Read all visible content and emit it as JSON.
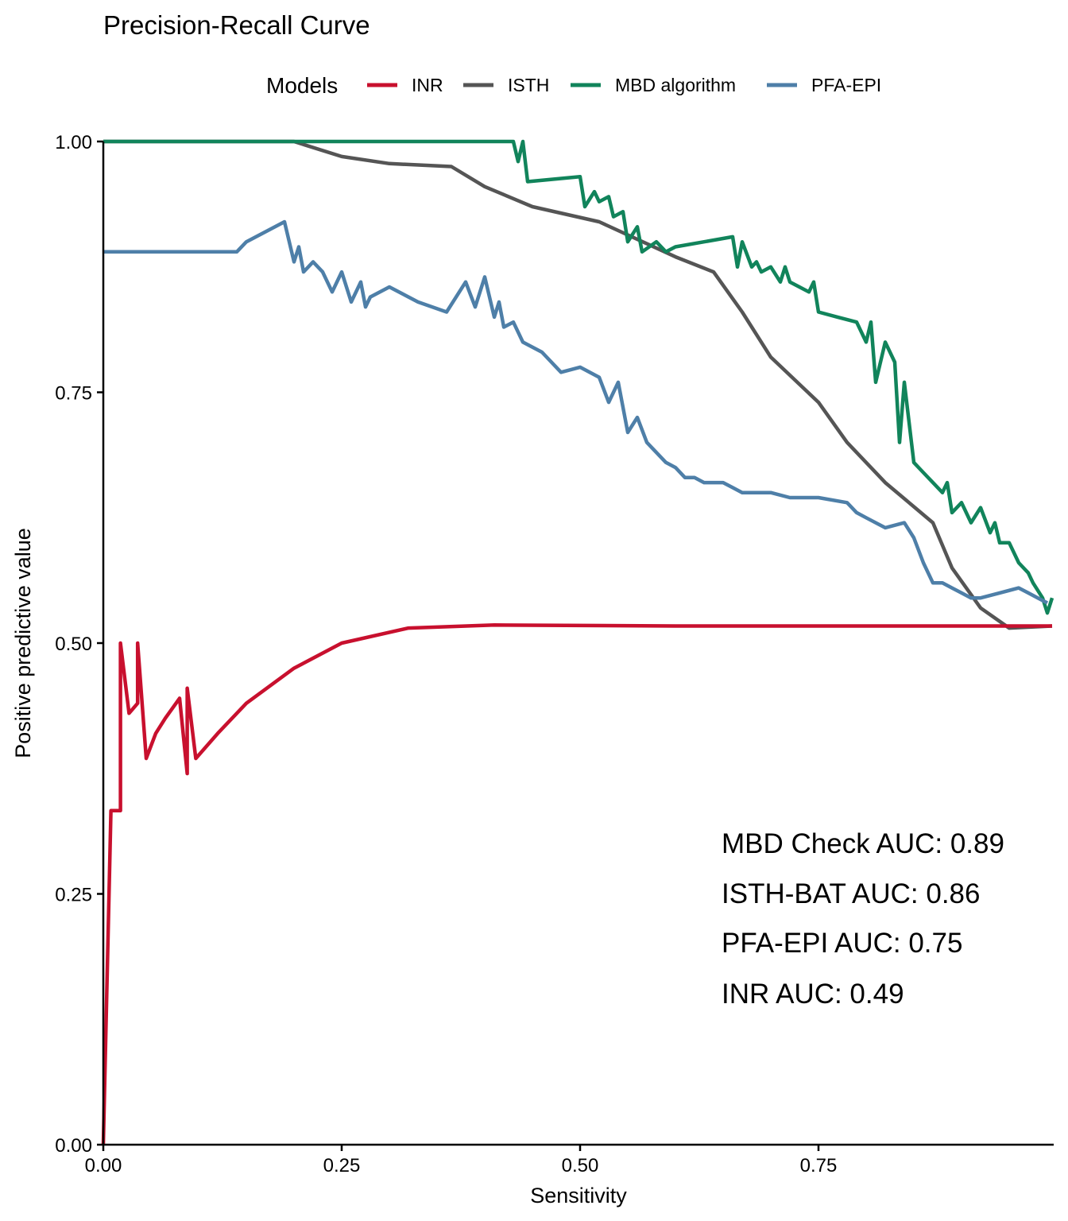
{
  "chart_data": {
    "type": "line",
    "title": "Precision-Recall Curve",
    "xlabel": "Sensitivity",
    "ylabel": "Positive predictive value",
    "xlim": [
      0,
      1
    ],
    "ylim": [
      0,
      1
    ],
    "xticks": [
      "0.00",
      "0.25",
      "0.50",
      "0.75"
    ],
    "xtick_values": [
      0,
      0.25,
      0.5,
      0.75
    ],
    "yticks": [
      "0.00",
      "0.25",
      "0.50",
      "0.75",
      "1.00"
    ],
    "ytick_values": [
      0,
      0.25,
      0.5,
      0.75,
      1.0
    ],
    "grid": false,
    "legend": {
      "title": "Models",
      "placement": "top",
      "entries": [
        "INR",
        "ISTH",
        "MBD algorithm",
        "PFA-EPI"
      ]
    },
    "annotations": [
      "MBD Check AUC: 0.89",
      "ISTH-BAT AUC: 0.86",
      "PFA-EPI AUC: 0.75",
      "INR AUC: 0.49"
    ],
    "series": [
      {
        "name": "INR",
        "color": "#C8102E",
        "x": [
          0.0,
          0.008,
          0.018,
          0.018,
          0.027,
          0.036,
          0.036,
          0.045,
          0.055,
          0.065,
          0.08,
          0.088,
          0.088,
          0.097,
          0.12,
          0.15,
          0.2,
          0.25,
          0.32,
          0.41,
          0.6,
          0.8,
          0.9,
          0.995
        ],
        "y": [
          0.0,
          0.333,
          0.333,
          0.5,
          0.43,
          0.44,
          0.5,
          0.385,
          0.41,
          0.425,
          0.445,
          0.37,
          0.455,
          0.385,
          0.41,
          0.44,
          0.475,
          0.5,
          0.515,
          0.518,
          0.517,
          0.517,
          0.517,
          0.517
        ]
      },
      {
        "name": "ISTH",
        "color": "#555555",
        "x": [
          0.0,
          0.2,
          0.25,
          0.3,
          0.365,
          0.4,
          0.45,
          0.52,
          0.6,
          0.64,
          0.67,
          0.7,
          0.75,
          0.78,
          0.82,
          0.87,
          0.89,
          0.92,
          0.95,
          0.995
        ],
        "y": [
          1.0,
          1.0,
          0.985,
          0.978,
          0.975,
          0.955,
          0.935,
          0.92,
          0.885,
          0.87,
          0.83,
          0.785,
          0.74,
          0.7,
          0.66,
          0.62,
          0.575,
          0.535,
          0.515,
          0.517
        ]
      },
      {
        "name": "MBD algorithm",
        "color": "#11845B",
        "x": [
          0.0,
          0.42,
          0.43,
          0.435,
          0.44,
          0.445,
          0.5,
          0.505,
          0.515,
          0.52,
          0.53,
          0.535,
          0.545,
          0.55,
          0.56,
          0.565,
          0.58,
          0.59,
          0.6,
          0.66,
          0.665,
          0.67,
          0.68,
          0.685,
          0.69,
          0.7,
          0.71,
          0.715,
          0.72,
          0.73,
          0.74,
          0.745,
          0.75,
          0.77,
          0.79,
          0.8,
          0.805,
          0.81,
          0.82,
          0.83,
          0.835,
          0.84,
          0.85,
          0.86,
          0.87,
          0.88,
          0.885,
          0.89,
          0.9,
          0.91,
          0.92,
          0.93,
          0.935,
          0.94,
          0.95,
          0.96,
          0.97,
          0.975,
          0.985,
          0.99,
          0.995
        ],
        "y": [
          1.0,
          1.0,
          1.0,
          0.98,
          1.0,
          0.96,
          0.965,
          0.935,
          0.95,
          0.94,
          0.945,
          0.925,
          0.93,
          0.9,
          0.915,
          0.89,
          0.9,
          0.89,
          0.895,
          0.905,
          0.875,
          0.9,
          0.875,
          0.88,
          0.87,
          0.875,
          0.86,
          0.875,
          0.86,
          0.855,
          0.85,
          0.86,
          0.83,
          0.825,
          0.82,
          0.8,
          0.82,
          0.76,
          0.8,
          0.78,
          0.7,
          0.76,
          0.68,
          0.67,
          0.66,
          0.65,
          0.66,
          0.63,
          0.64,
          0.62,
          0.635,
          0.61,
          0.62,
          0.6,
          0.6,
          0.58,
          0.57,
          0.56,
          0.545,
          0.53,
          0.545
        ]
      },
      {
        "name": "PFA-EPI",
        "color": "#4E7FA8",
        "x": [
          0.0,
          0.14,
          0.15,
          0.17,
          0.19,
          0.2,
          0.205,
          0.21,
          0.22,
          0.23,
          0.24,
          0.25,
          0.26,
          0.27,
          0.275,
          0.28,
          0.3,
          0.33,
          0.36,
          0.38,
          0.39,
          0.4,
          0.41,
          0.415,
          0.42,
          0.43,
          0.44,
          0.46,
          0.48,
          0.5,
          0.52,
          0.53,
          0.54,
          0.55,
          0.56,
          0.57,
          0.58,
          0.59,
          0.6,
          0.61,
          0.62,
          0.63,
          0.65,
          0.66,
          0.67,
          0.68,
          0.7,
          0.72,
          0.75,
          0.78,
          0.79,
          0.8,
          0.82,
          0.84,
          0.85,
          0.86,
          0.87,
          0.88,
          0.89,
          0.9,
          0.91,
          0.92,
          0.94,
          0.96,
          0.97,
          0.98,
          0.99
        ],
        "y": [
          0.89,
          0.89,
          0.9,
          0.91,
          0.92,
          0.88,
          0.895,
          0.87,
          0.88,
          0.87,
          0.85,
          0.87,
          0.84,
          0.86,
          0.835,
          0.845,
          0.855,
          0.84,
          0.83,
          0.86,
          0.835,
          0.865,
          0.825,
          0.84,
          0.815,
          0.82,
          0.8,
          0.79,
          0.77,
          0.775,
          0.765,
          0.74,
          0.76,
          0.71,
          0.725,
          0.7,
          0.69,
          0.68,
          0.675,
          0.665,
          0.665,
          0.66,
          0.66,
          0.655,
          0.65,
          0.65,
          0.65,
          0.645,
          0.645,
          0.64,
          0.63,
          0.625,
          0.615,
          0.62,
          0.605,
          0.58,
          0.56,
          0.56,
          0.555,
          0.55,
          0.545,
          0.545,
          0.55,
          0.555,
          0.55,
          0.545,
          0.54
        ]
      }
    ]
  }
}
